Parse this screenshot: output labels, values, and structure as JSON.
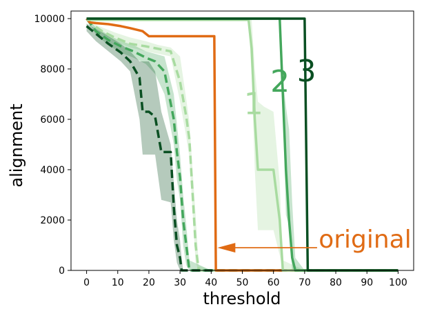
{
  "chart_data": {
    "type": "line",
    "xlabel": "threshold",
    "ylabel": "alignment",
    "xlim": [
      -5,
      105
    ],
    "ylim": [
      0,
      10300
    ],
    "xticks": [
      0,
      10,
      20,
      30,
      40,
      50,
      60,
      70,
      80,
      90,
      100
    ],
    "yticks": [
      0,
      2000,
      4000,
      6000,
      8000,
      10000
    ],
    "grid": false,
    "colors": {
      "orange": "#e06b14",
      "light_green": "#a8dba0",
      "mid_green": "#44a75c",
      "dark_green": "#0a4f22"
    },
    "series": [
      {
        "color": "#e06b14",
        "style": "solid",
        "x": [
          0,
          1,
          3,
          7,
          11,
          14,
          18,
          20,
          22,
          25,
          30,
          35,
          40,
          41,
          41.5,
          42,
          50,
          60,
          70,
          80,
          90,
          100
        ],
        "y": [
          10000,
          9850,
          9820,
          9780,
          9700,
          9620,
          9500,
          9300,
          9300,
          9300,
          9300,
          9300,
          9300,
          9300,
          0,
          0,
          0,
          0,
          0,
          0,
          0,
          0
        ]
      },
      {
        "color": "#a8dba0",
        "style": "solid",
        "x": [
          0,
          10,
          20,
          30,
          40,
          50,
          52,
          53,
          54,
          55,
          57,
          60,
          62,
          63,
          70,
          80,
          90,
          100
        ],
        "y": [
          9950,
          9950,
          9950,
          9950,
          9950,
          9950,
          9950,
          8800,
          6000,
          4000,
          4000,
          4000,
          2000,
          0,
          0,
          0,
          0,
          0
        ],
        "band_upper": [
          10000,
          10000,
          10000,
          10000,
          10000,
          10000,
          10000,
          9950,
          8000,
          6700,
          6500,
          6300,
          3500,
          400,
          0,
          0,
          0,
          0
        ],
        "band_lower": [
          9900,
          9900,
          9900,
          9900,
          9900,
          9900,
          9900,
          7700,
          4000,
          1600,
          1600,
          1600,
          600,
          0,
          0,
          0,
          0,
          0
        ]
      },
      {
        "color": "#44a75c",
        "style": "solid",
        "x": [
          0,
          10,
          20,
          30,
          40,
          50,
          60,
          62,
          63,
          64,
          65,
          66,
          67,
          70,
          80,
          90,
          100
        ],
        "y": [
          10000,
          10000,
          10000,
          10000,
          10000,
          10000,
          10000,
          10000,
          7000,
          4000,
          2000,
          500,
          0,
          0,
          0,
          0,
          0
        ],
        "band_upper": [
          10000,
          10000,
          10000,
          10000,
          10000,
          10000,
          10000,
          10000,
          7600,
          6500,
          5600,
          2700,
          500,
          0,
          0,
          0,
          0
        ],
        "band_lower": [
          10000,
          10000,
          10000,
          10000,
          10000,
          10000,
          10000,
          10000,
          6400,
          2200,
          1800,
          0,
          0,
          0,
          0,
          0,
          0
        ]
      },
      {
        "color": "#0a4f22",
        "style": "solid",
        "x": [
          0,
          10,
          20,
          30,
          40,
          50,
          60,
          70,
          71,
          80,
          90,
          100
        ],
        "y": [
          10000,
          10000,
          10000,
          10000,
          10000,
          10000,
          10000,
          10000,
          0,
          0,
          0,
          0
        ]
      },
      {
        "color": "#a8dba0",
        "style": "dashed",
        "x": [
          0,
          2,
          5,
          9,
          14,
          19,
          23,
          27,
          30,
          32,
          33,
          35,
          36,
          40,
          50,
          60,
          70,
          80,
          90,
          100
        ],
        "y": [
          10000,
          9750,
          9500,
          9250,
          9000,
          8900,
          8800,
          8700,
          7500,
          6100,
          5200,
          1000,
          0,
          0,
          0,
          0,
          0,
          0,
          0,
          0
        ],
        "band_upper": [
          10000,
          9800,
          9650,
          9450,
          9250,
          9100,
          8950,
          8850,
          8500,
          6800,
          5900,
          2200,
          200,
          0,
          0,
          0,
          0,
          0,
          0,
          0
        ],
        "band_lower": [
          10000,
          9700,
          9400,
          9100,
          8850,
          8700,
          8600,
          8500,
          6700,
          5300,
          4500,
          300,
          0,
          0,
          0,
          0,
          0,
          0,
          0,
          0
        ]
      },
      {
        "color": "#44a75c",
        "style": "dashed",
        "x": [
          0,
          3,
          7,
          11,
          15,
          19,
          22,
          25,
          28,
          29,
          30,
          31,
          32,
          33,
          40,
          50,
          60,
          70,
          80,
          90,
          100
        ],
        "y": [
          10000,
          9500,
          9150,
          8900,
          8700,
          8450,
          8300,
          7900,
          6000,
          4700,
          3700,
          2000,
          1000,
          0,
          0,
          0,
          0,
          0,
          0,
          0,
          0
        ],
        "band_upper": [
          10000,
          9650,
          9350,
          9100,
          8950,
          8700,
          8600,
          8500,
          7000,
          5800,
          4600,
          3000,
          1800,
          400,
          0,
          0,
          0,
          0,
          0,
          0,
          0
        ],
        "band_lower": [
          10000,
          9350,
          8950,
          8650,
          8450,
          8200,
          7800,
          7000,
          5000,
          3600,
          2800,
          1000,
          200,
          0,
          0,
          0,
          0,
          0,
          0,
          0,
          0
        ]
      },
      {
        "color": "#0a4f22",
        "style": "dashed",
        "x": [
          0,
          3,
          7,
          11,
          14,
          17,
          18,
          20,
          22,
          24,
          27,
          28,
          29,
          30,
          30.5,
          31,
          40,
          50,
          60,
          70,
          80,
          90,
          100
        ],
        "y": [
          9700,
          9400,
          9000,
          8650,
          8300,
          7650,
          6300,
          6300,
          6100,
          4700,
          4700,
          2500,
          1000,
          500,
          0,
          0,
          0,
          0,
          0,
          0,
          0,
          0,
          0
        ],
        "band_upper": [
          9800,
          9600,
          9300,
          9000,
          8700,
          8300,
          8300,
          8300,
          7900,
          6300,
          5000,
          3500,
          2000,
          1200,
          500,
          0,
          0,
          0,
          0,
          0,
          0,
          0,
          0
        ],
        "band_lower": [
          9500,
          9100,
          8700,
          8300,
          7900,
          6000,
          4600,
          4600,
          4600,
          2800,
          2700,
          1200,
          300,
          0,
          0,
          0,
          0,
          0,
          0,
          0,
          0,
          0,
          0
        ]
      }
    ],
    "annotations": [
      {
        "text": "1",
        "x": 50.5,
        "y": 6200,
        "color": "#a8dba0",
        "size": 44
      },
      {
        "text": "2",
        "x": 59,
        "y": 7100,
        "color": "#44a75c",
        "size": 44
      },
      {
        "text": "3",
        "x": 67.5,
        "y": 7500,
        "color": "#0a4f22",
        "size": 44
      },
      {
        "text": "original",
        "x": 74.5,
        "y": 900,
        "color": "#e06b14",
        "size": 36
      }
    ],
    "arrow": {
      "from": [
        74,
        900
      ],
      "to": [
        42,
        900
      ],
      "color": "#e06b14"
    }
  }
}
